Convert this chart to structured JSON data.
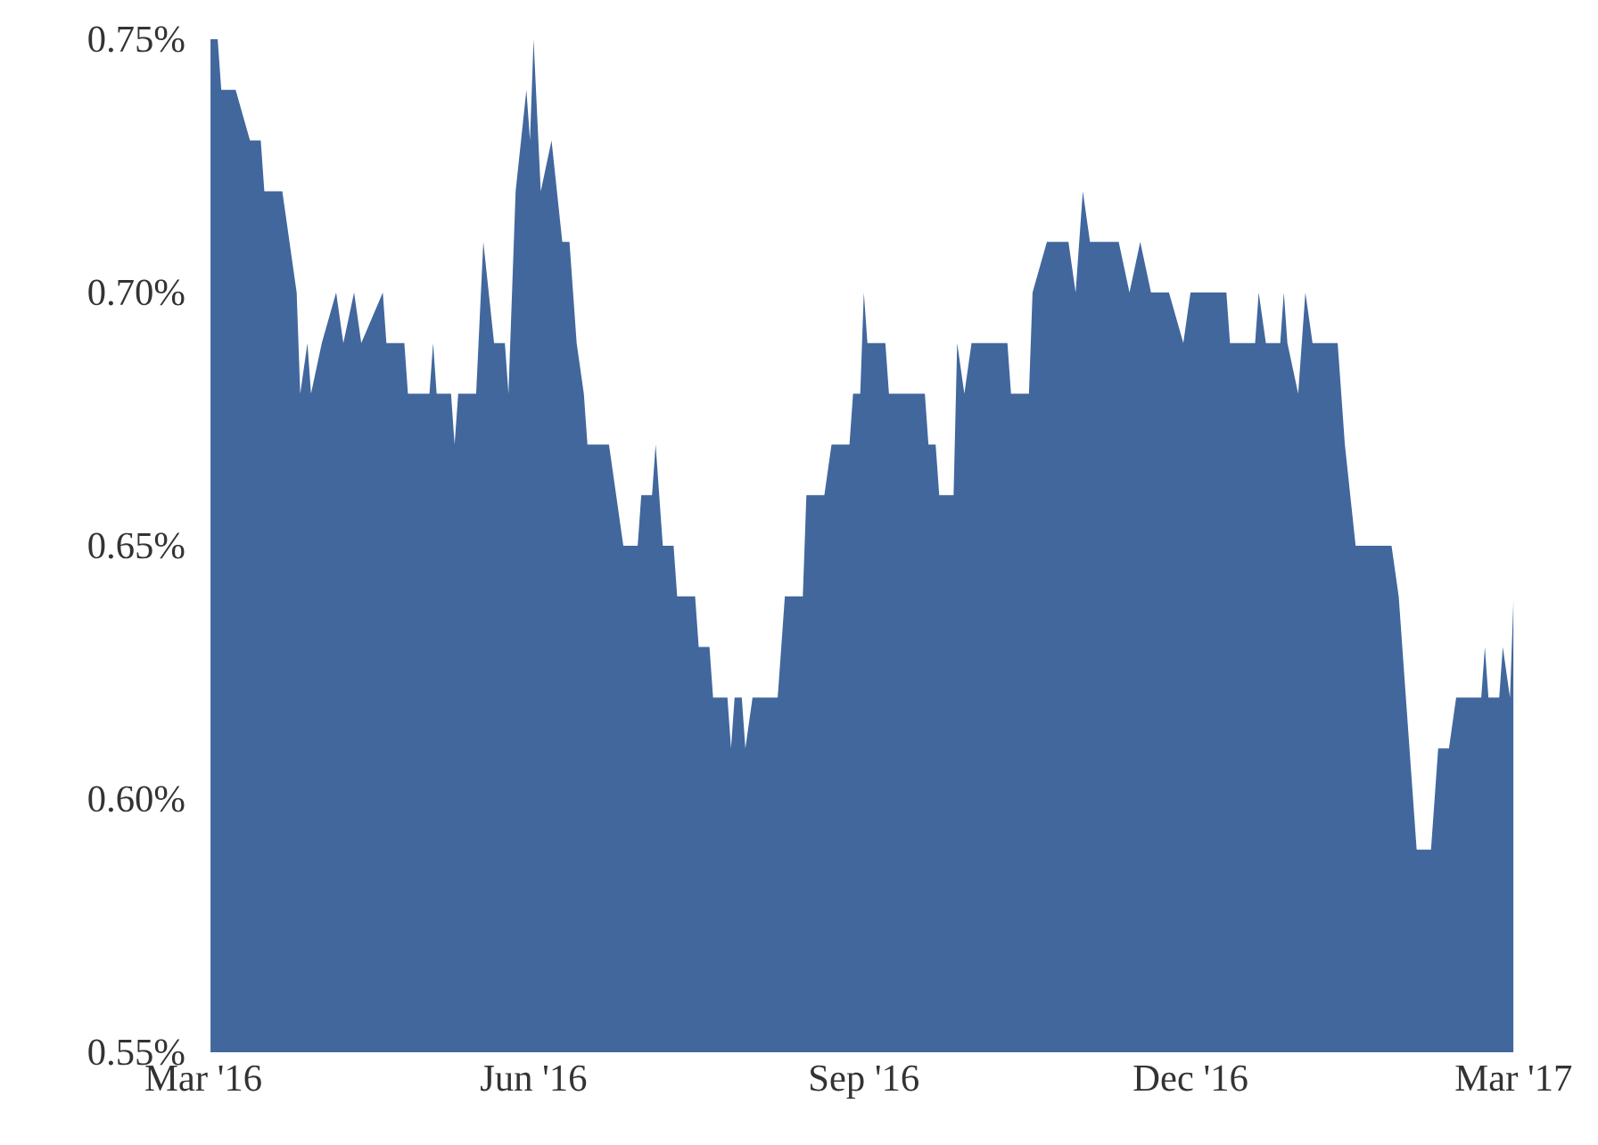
{
  "chart_data": {
    "type": "area",
    "color": "#41679d",
    "x": [
      "2016-03-03",
      "2016-03-05",
      "2016-03-06",
      "2016-03-10",
      "2016-03-14",
      "2016-03-17",
      "2016-03-18",
      "2016-03-23",
      "2016-03-25",
      "2016-03-27",
      "2016-03-28",
      "2016-03-30",
      "2016-03-31",
      "2016-04-03",
      "2016-04-07",
      "2016-04-09",
      "2016-04-12",
      "2016-04-14",
      "2016-04-20",
      "2016-04-21",
      "2016-04-26",
      "2016-04-27",
      "2016-05-03",
      "2016-05-04",
      "2016-05-05",
      "2016-05-09",
      "2016-05-10",
      "2016-05-11",
      "2016-05-16",
      "2016-05-18",
      "2016-05-21",
      "2016-05-24",
      "2016-05-25",
      "2016-05-27",
      "2016-05-30",
      "2016-05-31",
      "2016-06-01",
      "2016-06-03",
      "2016-06-06",
      "2016-06-09",
      "2016-06-11",
      "2016-06-13",
      "2016-06-15",
      "2016-06-16",
      "2016-06-22",
      "2016-06-26",
      "2016-06-30",
      "2016-07-01",
      "2016-07-04",
      "2016-07-05",
      "2016-07-07",
      "2016-07-10",
      "2016-07-11",
      "2016-07-16",
      "2016-07-17",
      "2016-07-20",
      "2016-07-21",
      "2016-07-25",
      "2016-07-26",
      "2016-07-27",
      "2016-07-29",
      "2016-07-30",
      "2016-08-01",
      "2016-08-08",
      "2016-08-10",
      "2016-08-15",
      "2016-08-16",
      "2016-08-21",
      "2016-08-23",
      "2016-08-28",
      "2016-08-29",
      "2016-08-31",
      "2016-09-01",
      "2016-09-02",
      "2016-09-07",
      "2016-09-08",
      "2016-09-18",
      "2016-09-19",
      "2016-09-21",
      "2016-09-22",
      "2016-09-26",
      "2016-09-27",
      "2016-09-29",
      "2016-10-01",
      "2016-10-11",
      "2016-10-12",
      "2016-10-17",
      "2016-10-18",
      "2016-10-22",
      "2016-10-28",
      "2016-10-30",
      "2016-11-01",
      "2016-11-03",
      "2016-11-11",
      "2016-11-14",
      "2016-11-17",
      "2016-11-20",
      "2016-11-25",
      "2016-11-29",
      "2016-12-01",
      "2016-12-11",
      "2016-12-12",
      "2016-12-19",
      "2016-12-20",
      "2016-12-22",
      "2016-12-26",
      "2016-12-27",
      "2016-12-28",
      "2016-12-31",
      "2017-01-02",
      "2017-01-04",
      "2017-01-11",
      "2017-01-13",
      "2017-01-16",
      "2017-01-26",
      "2017-01-28",
      "2017-01-31",
      "2017-02-02",
      "2017-02-06",
      "2017-02-08",
      "2017-02-11",
      "2017-02-13",
      "2017-02-20",
      "2017-02-21",
      "2017-02-22",
      "2017-02-25",
      "2017-02-26",
      "2017-02-28",
      "2017-03-01"
    ],
    "values": [
      0.75,
      0.75,
      0.74,
      0.74,
      0.73,
      0.73,
      0.72,
      0.72,
      0.71,
      0.7,
      0.68,
      0.69,
      0.68,
      0.69,
      0.7,
      0.69,
      0.7,
      0.69,
      0.7,
      0.69,
      0.69,
      0.68,
      0.68,
      0.69,
      0.68,
      0.68,
      0.67,
      0.68,
      0.68,
      0.71,
      0.69,
      0.69,
      0.68,
      0.72,
      0.74,
      0.73,
      0.75,
      0.72,
      0.73,
      0.71,
      0.71,
      0.69,
      0.68,
      0.67,
      0.67,
      0.65,
      0.65,
      0.66,
      0.66,
      0.67,
      0.65,
      0.65,
      0.64,
      0.64,
      0.63,
      0.63,
      0.62,
      0.62,
      0.61,
      0.62,
      0.62,
      0.61,
      0.62,
      0.62,
      0.64,
      0.64,
      0.66,
      0.66,
      0.67,
      0.67,
      0.68,
      0.68,
      0.7,
      0.69,
      0.69,
      0.68,
      0.68,
      0.67,
      0.67,
      0.66,
      0.66,
      0.69,
      0.68,
      0.69,
      0.69,
      0.68,
      0.68,
      0.7,
      0.71,
      0.71,
      0.7,
      0.72,
      0.71,
      0.71,
      0.7,
      0.71,
      0.7,
      0.7,
      0.69,
      0.7,
      0.7,
      0.69,
      0.69,
      0.7,
      0.69,
      0.69,
      0.7,
      0.69,
      0.68,
      0.7,
      0.69,
      0.69,
      0.67,
      0.65,
      0.65,
      0.64,
      0.61,
      0.59,
      0.59,
      0.61,
      0.61,
      0.62,
      0.62,
      0.63,
      0.62,
      0.62,
      0.63,
      0.62,
      0.64
    ],
    "xlim": [
      "2016-03-01",
      "2017-03-01"
    ],
    "xticks": [
      {
        "value": "2016-03-01",
        "label": "Mar '16"
      },
      {
        "value": "2016-06-01",
        "label": "Jun '16"
      },
      {
        "value": "2016-09-01",
        "label": "Sep '16"
      },
      {
        "value": "2016-12-01",
        "label": "Dec '16"
      },
      {
        "value": "2017-03-01",
        "label": "Mar '17"
      }
    ],
    "ylim": [
      0.55,
      0.75
    ],
    "yticks": [
      {
        "value": 0.55,
        "label": "0.55%"
      },
      {
        "value": 0.6,
        "label": "0.60%"
      },
      {
        "value": 0.65,
        "label": "0.65%"
      },
      {
        "value": 0.7,
        "label": "0.70%"
      },
      {
        "value": 0.75,
        "label": "0.75%"
      }
    ]
  }
}
